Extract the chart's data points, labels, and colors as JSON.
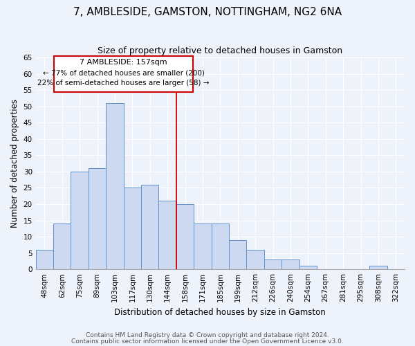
{
  "title": "7, AMBLESIDE, GAMSTON, NOTTINGHAM, NG2 6NA",
  "subtitle": "Size of property relative to detached houses in Gamston",
  "xlabel": "Distribution of detached houses by size in Gamston",
  "ylabel": "Number of detached properties",
  "bar_labels": [
    "48sqm",
    "62sqm",
    "75sqm",
    "89sqm",
    "103sqm",
    "117sqm",
    "130sqm",
    "144sqm",
    "158sqm",
    "171sqm",
    "185sqm",
    "199sqm",
    "212sqm",
    "226sqm",
    "240sqm",
    "254sqm",
    "267sqm",
    "281sqm",
    "295sqm",
    "308sqm",
    "322sqm"
  ],
  "bar_values": [
    6,
    14,
    30,
    31,
    51,
    25,
    26,
    21,
    20,
    14,
    14,
    9,
    6,
    3,
    3,
    1,
    0,
    0,
    0,
    1,
    0
  ],
  "bar_color": "#ccd9f0",
  "bar_edge_color": "#6090c8",
  "highlight_line_color": "#cc0000",
  "highlight_line_index": 8,
  "ylim": [
    0,
    65
  ],
  "yticks": [
    0,
    5,
    10,
    15,
    20,
    25,
    30,
    35,
    40,
    45,
    50,
    55,
    60,
    65
  ],
  "annotation_title": "7 AMBLESIDE: 157sqm",
  "annotation_line1": "← 77% of detached houses are smaller (200)",
  "annotation_line2": "22% of semi-detached houses are larger (58) →",
  "annotation_box_color": "#ffffff",
  "annotation_box_edge": "#cc0000",
  "footer1": "Contains HM Land Registry data © Crown copyright and database right 2024.",
  "footer2": "Contains public sector information licensed under the Open Government Licence v3.0.",
  "bg_color": "#eef2fa",
  "grid_color": "#ffffff",
  "title_fontsize": 11,
  "subtitle_fontsize": 9,
  "axis_label_fontsize": 8.5,
  "tick_fontsize": 7.5,
  "footer_fontsize": 6.5
}
